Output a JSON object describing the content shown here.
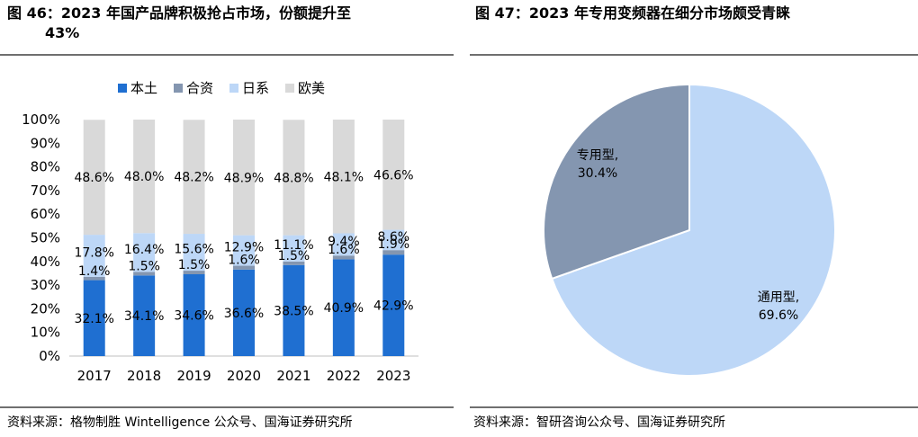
{
  "left_panel": {
    "title_line1": "图 46：2023 年国产品牌积极抢占市场，份额提升至",
    "title_line2": "43%",
    "source": "资料来源：格物制胜 Wintelligence 公众号、国海证券研究所"
  },
  "right_panel": {
    "title": "图 47：2023 年专用变频器在细分市场颇受青睐",
    "source": "资料来源：智研咨询公众号、国海证券研究所"
  },
  "chart_data": [
    {
      "type": "bar",
      "stacked": true,
      "percent": true,
      "categories": [
        "2017",
        "2018",
        "2019",
        "2020",
        "2021",
        "2022",
        "2023"
      ],
      "series": [
        {
          "name": "本土",
          "color": "#1f6fd1",
          "values": [
            32.1,
            34.1,
            34.6,
            36.6,
            38.5,
            40.9,
            42.9
          ]
        },
        {
          "name": "合资",
          "color": "#8496b0",
          "values": [
            1.4,
            1.5,
            1.5,
            1.6,
            1.5,
            1.6,
            1.9
          ]
        },
        {
          "name": "日系",
          "color": "#bdd7f7",
          "values": [
            17.8,
            16.4,
            15.6,
            12.9,
            11.1,
            9.4,
            8.6
          ]
        },
        {
          "name": "欧美",
          "color": "#d9d9d9",
          "values": [
            48.6,
            48.0,
            48.2,
            48.9,
            48.8,
            48.1,
            46.6
          ]
        }
      ],
      "ylim": [
        0,
        100
      ],
      "yticks": [
        "0%",
        "10%",
        "20%",
        "30%",
        "40%",
        "50%",
        "60%",
        "70%",
        "80%",
        "90%",
        "100%"
      ],
      "legend_position": "top",
      "grid": false
    },
    {
      "type": "pie",
      "slices": [
        {
          "label": "通用型",
          "value": 69.6,
          "display": "69.6%",
          "color": "#bdd7f7"
        },
        {
          "label": "专用型",
          "value": 30.4,
          "display": "30.4%",
          "color": "#8496b0"
        }
      ],
      "start_angle_deg": 0,
      "direction": "clockwise"
    }
  ]
}
